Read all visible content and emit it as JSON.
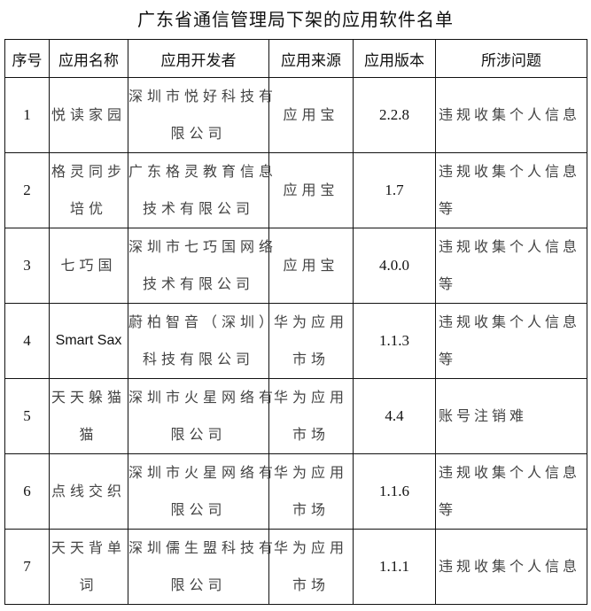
{
  "title": "广东省通信管理局下架的应用软件名单",
  "columns": [
    "序号",
    "应用名称",
    "应用开发者",
    "应用来源",
    "应用版本",
    "所涉问题"
  ],
  "rows": [
    {
      "index": "1",
      "name": [
        "悦读家园"
      ],
      "developer": [
        "深圳市悦好科技有",
        "限公司"
      ],
      "source": [
        "应用宝"
      ],
      "version": "2.2.8",
      "issue": [
        "违规收集个人信息"
      ]
    },
    {
      "index": "2",
      "name": [
        "格灵同步",
        "培优"
      ],
      "developer": [
        "广东格灵教育信息",
        "技术有限公司"
      ],
      "source": [
        "应用宝"
      ],
      "version": "1.7",
      "issue": [
        "违规收集个人信息",
        "等"
      ]
    },
    {
      "index": "3",
      "name": [
        "七巧国"
      ],
      "developer": [
        "深圳市七巧国网络",
        "技术有限公司"
      ],
      "source": [
        "应用宝"
      ],
      "version": "4.0.0",
      "issue": [
        "违规收集个人信息",
        "等"
      ]
    },
    {
      "index": "4",
      "name": [
        "Smart Sax"
      ],
      "developer": [
        "蔚柏智音（深圳）",
        "科技有限公司"
      ],
      "source": [
        "华为应用",
        "市场"
      ],
      "version": "1.1.3",
      "issue": [
        "违规收集个人信息",
        "等"
      ]
    },
    {
      "index": "5",
      "name": [
        "天天躲猫",
        "猫"
      ],
      "developer": [
        "深圳市火星网络有",
        "限公司"
      ],
      "source": [
        "华为应用",
        "市场"
      ],
      "version": "4.4",
      "issue": [
        "账号注销难"
      ]
    },
    {
      "index": "6",
      "name": [
        "点线交织"
      ],
      "developer": [
        "深圳市火星网络有",
        "限公司"
      ],
      "source": [
        "华为应用",
        "市场"
      ],
      "version": "1.1.6",
      "issue": [
        "违规收集个人信息",
        "等"
      ]
    },
    {
      "index": "7",
      "name": [
        "天天背单",
        "词"
      ],
      "developer": [
        "深圳儒生盟科技有",
        "限公司"
      ],
      "source": [
        "华为应用",
        "市场"
      ],
      "version": "1.1.1",
      "issue": [
        "违规收集个人信息"
      ]
    }
  ]
}
